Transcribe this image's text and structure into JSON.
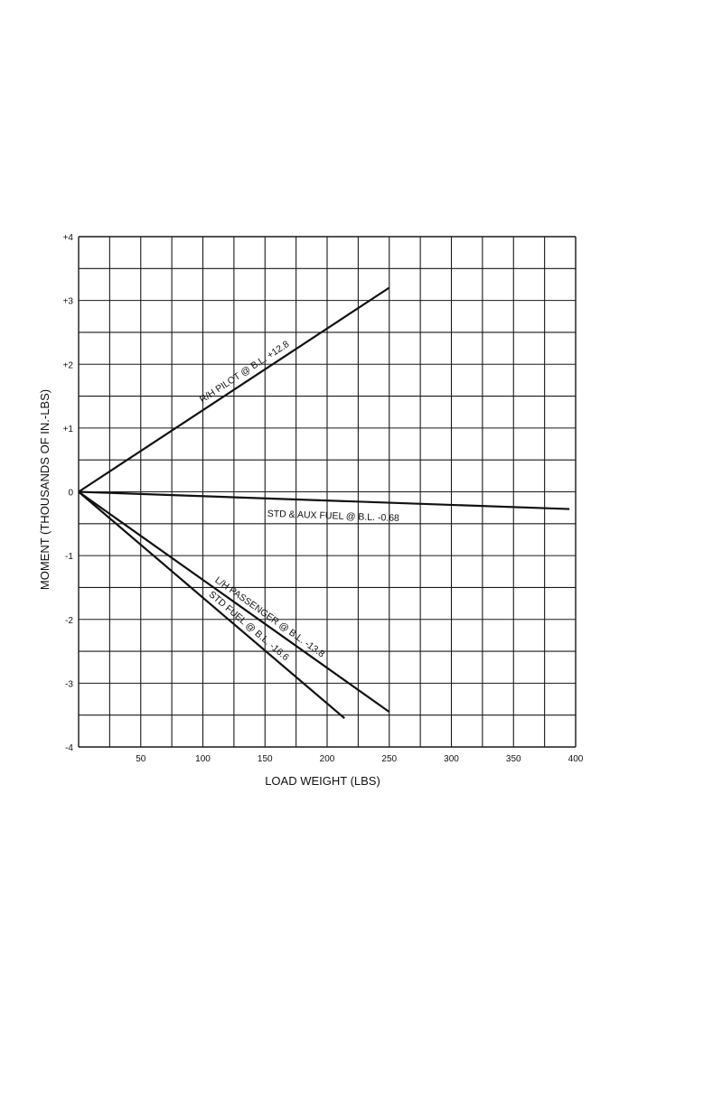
{
  "chart_data": {
    "type": "line",
    "title": "",
    "xlabel": "LOAD WEIGHT (LBS)",
    "ylabel": "MOMENT (THOUSANDS OF IN.-LBS)",
    "xlim": [
      0,
      400
    ],
    "ylim": [
      -4,
      4
    ],
    "x_ticks": [
      "50",
      "100",
      "150",
      "200",
      "250",
      "300",
      "350",
      "400"
    ],
    "y_ticks": [
      "+4",
      "+3",
      "+2",
      "+1",
      "0",
      "-1",
      "-2",
      "-3",
      "-4"
    ],
    "grid": true,
    "legend": "none",
    "series": [
      {
        "name": "R/H PILOT @ B.L. +12.8",
        "x": [
          0,
          250
        ],
        "y": [
          0,
          3.2
        ]
      },
      {
        "name": "STD & AUX FUEL @ B.L. -0.68",
        "x": [
          0,
          395
        ],
        "y": [
          0,
          -0.27
        ]
      },
      {
        "name": "L/H PASSENGER @ B.L. -13.8",
        "x": [
          0,
          250
        ],
        "y": [
          0,
          -3.45
        ]
      },
      {
        "name": "STD FUEL @ B.L. -16.6",
        "x": [
          0,
          214
        ],
        "y": [
          0,
          -3.55
        ]
      }
    ]
  }
}
